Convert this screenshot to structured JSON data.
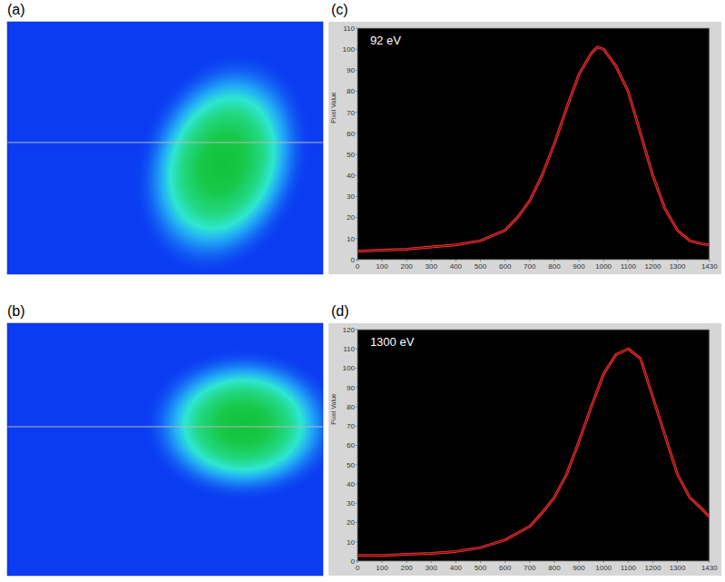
{
  "chart_data": [
    {
      "type": "image",
      "panel": "(a)",
      "xlim": [
        0,
        1430
      ],
      "ylim": [
        0,
        1144
      ],
      "tick_labels": false,
      "spot": {
        "cx": 974,
        "cy": 642,
        "rx": 220,
        "ry": 300,
        "angle": 20
      },
      "cut_row": 547
    },
    {
      "type": "image",
      "panel": "(b)",
      "xlim": [
        0,
        1430
      ],
      "ylim": [
        0,
        1144
      ],
      "tick_labels": false,
      "spot": {
        "cx": 1068,
        "cy": 461,
        "rx": 260,
        "ry": 200,
        "angle": 0
      },
      "cut_row": 469
    },
    {
      "type": "line",
      "panel": "(c)",
      "annotation": "92 eV",
      "y_label": "Pixel Value",
      "x": [
        0,
        100,
        200,
        300,
        400,
        500,
        600,
        650,
        700,
        750,
        800,
        850,
        900,
        950,
        975,
        1000,
        1050,
        1100,
        1150,
        1200,
        1250,
        1300,
        1350,
        1400,
        1430
      ],
      "values": [
        4,
        4.5,
        5,
        6,
        7,
        9,
        14,
        20,
        28,
        40,
        55,
        72,
        88,
        98,
        101,
        100,
        92,
        80,
        60,
        40,
        24,
        14,
        9,
        7.5,
        7
      ],
      "color": "#ff2a2a",
      "xlim": [
        0,
        1430
      ],
      "ylim": [
        0,
        110
      ],
      "xticks": [
        0,
        100,
        200,
        300,
        400,
        500,
        600,
        700,
        800,
        900,
        1000,
        1100,
        1200,
        1300,
        {
          "value": 1430,
          "label": "1430"
        }
      ],
      "yticks": [
        0,
        10,
        20,
        30,
        40,
        50,
        60,
        70,
        80,
        90,
        100,
        110
      ]
    },
    {
      "type": "line",
      "panel": "(d)",
      "annotation": "1300 eV",
      "y_label": "Pixel Value",
      "x": [
        0,
        100,
        200,
        300,
        400,
        500,
        600,
        700,
        750,
        800,
        850,
        900,
        950,
        1000,
        1050,
        1100,
        1150,
        1200,
        1250,
        1300,
        1350,
        1400,
        1430
      ],
      "values": [
        3,
        3,
        3.5,
        4,
        5,
        7,
        11,
        18,
        25,
        33,
        45,
        62,
        80,
        97,
        107,
        110,
        105,
        85,
        65,
        45,
        33,
        27,
        23
      ],
      "color": "#ff2a2a",
      "xlim": [
        0,
        1430
      ],
      "ylim": [
        0,
        120
      ],
      "xticks": [
        0,
        100,
        200,
        300,
        400,
        500,
        600,
        700,
        800,
        900,
        1000,
        1100,
        1200,
        1300,
        {
          "value": 1430,
          "label": "1430"
        }
      ],
      "yticks": [
        0,
        10,
        20,
        30,
        40,
        50,
        60,
        70,
        80,
        90,
        100,
        110,
        120
      ]
    }
  ]
}
